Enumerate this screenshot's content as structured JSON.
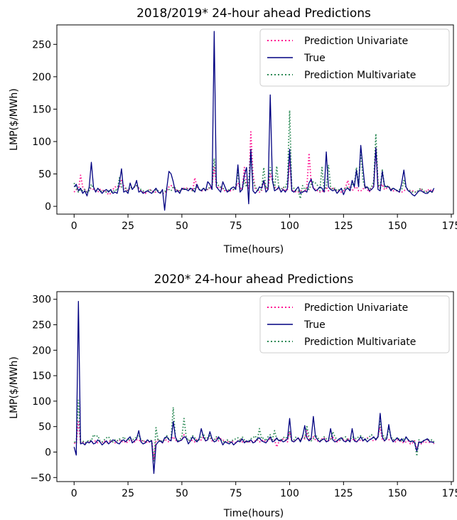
{
  "chart_data": [
    {
      "type": "line",
      "title": "2018/2019* 24-hour ahead Predictions",
      "xlabel": "Time(hours)",
      "ylabel": "LMP($/MWh)",
      "xlim": [
        -8,
        176
      ],
      "ylim": [
        -12,
        280
      ],
      "xticks": [
        0,
        25,
        50,
        75,
        100,
        125,
        150,
        175
      ],
      "yticks": [
        0,
        50,
        100,
        150,
        200,
        250
      ],
      "legend_position": "upper-right",
      "series": [
        {
          "name": "Prediction Univariate",
          "color": "#ff1493",
          "style": "dotted",
          "values": [
            22,
            26,
            24,
            48,
            30,
            25,
            22,
            26,
            28,
            26,
            24,
            22,
            26,
            25,
            24,
            22,
            18,
            20,
            26,
            30,
            30,
            28,
            40,
            32,
            26,
            24,
            28,
            30,
            30,
            32,
            28,
            24,
            22,
            20,
            22,
            26,
            24,
            22,
            22,
            24,
            22,
            20,
            20,
            24,
            30,
            32,
            30,
            26,
            24,
            24,
            26,
            28,
            28,
            28,
            26,
            24,
            44,
            30,
            26,
            24,
            24,
            26,
            26,
            28,
            32,
            60,
            32,
            28,
            30,
            26,
            24,
            24,
            24,
            24,
            26,
            30,
            36,
            28,
            26,
            60,
            32,
            28,
            115,
            50,
            28,
            24,
            22,
            24,
            40,
            26,
            28,
            50,
            40,
            30,
            28,
            26,
            24,
            30,
            24,
            26,
            70,
            24,
            24,
            22,
            22,
            24,
            24,
            22,
            30,
            82,
            36,
            28,
            26,
            24,
            22,
            24,
            22,
            30,
            24,
            28,
            28,
            26,
            24,
            24,
            22,
            24,
            30,
            40,
            26,
            24,
            28,
            30,
            24,
            24,
            26,
            32,
            26,
            22,
            30,
            32,
            90,
            32,
            28,
            34,
            26,
            28,
            30,
            26,
            24,
            24,
            24,
            22,
            22,
            24,
            26,
            26,
            24,
            24,
            22,
            22,
            24,
            28,
            22,
            22,
            26,
            24,
            26,
            22
          ]
        },
        {
          "name": "True",
          "color": "#000080",
          "style": "solid",
          "values": [
            30,
            34,
            24,
            28,
            20,
            24,
            16,
            30,
            68,
            30,
            22,
            28,
            24,
            20,
            24,
            26,
            22,
            26,
            20,
            22,
            20,
            36,
            58,
            22,
            24,
            20,
            36,
            26,
            30,
            40,
            22,
            24,
            20,
            22,
            24,
            22,
            20,
            24,
            28,
            22,
            20,
            26,
            -6,
            28,
            54,
            50,
            38,
            22,
            24,
            20,
            28,
            26,
            26,
            24,
            28,
            26,
            22,
            34,
            26,
            24,
            28,
            24,
            38,
            34,
            26,
            270,
            30,
            26,
            22,
            38,
            30,
            22,
            24,
            28,
            30,
            26,
            64,
            22,
            26,
            48,
            60,
            4,
            88,
            24,
            20,
            24,
            30,
            28,
            40,
            22,
            26,
            172,
            40,
            24,
            26,
            30,
            22,
            26,
            22,
            28,
            88,
            24,
            22,
            26,
            30,
            20,
            22,
            24,
            22,
            36,
            42,
            28,
            24,
            26,
            30,
            28,
            22,
            84,
            30,
            26,
            24,
            26,
            20,
            24,
            28,
            18,
            26,
            28,
            24,
            40,
            30,
            56,
            30,
            94,
            60,
            28,
            30,
            24,
            26,
            30,
            90,
            26,
            24,
            54,
            32,
            30,
            30,
            24,
            28,
            26,
            24,
            22,
            36,
            56,
            30,
            24,
            22,
            18,
            16,
            20,
            24,
            24,
            22,
            20,
            20,
            24,
            22,
            28
          ]
        },
        {
          "name": "Prediction Multivariate",
          "color": "#2e8b57",
          "style": "dotted",
          "values": [
            36,
            28,
            22,
            26,
            24,
            26,
            22,
            24,
            34,
            28,
            26,
            24,
            26,
            22,
            24,
            22,
            24,
            22,
            22,
            26,
            24,
            44,
            30,
            26,
            28,
            24,
            30,
            28,
            30,
            32,
            28,
            26,
            24,
            22,
            24,
            26,
            24,
            22,
            26,
            24,
            22,
            20,
            22,
            28,
            26,
            24,
            30,
            28,
            24,
            24,
            26,
            28,
            26,
            28,
            26,
            24,
            28,
            32,
            26,
            24,
            28,
            26,
            26,
            30,
            30,
            74,
            38,
            32,
            30,
            28,
            26,
            24,
            26,
            28,
            26,
            30,
            52,
            28,
            26,
            40,
            30,
            40,
            80,
            40,
            30,
            26,
            24,
            26,
            60,
            28,
            30,
            60,
            48,
            26,
            62,
            28,
            26,
            30,
            28,
            40,
            148,
            26,
            28,
            24,
            24,
            12,
            32,
            26,
            28,
            26,
            34,
            38,
            36,
            32,
            24,
            60,
            26,
            30,
            64,
            30,
            26,
            28,
            24,
            26,
            26,
            26,
            28,
            30,
            24,
            36,
            32,
            60,
            32,
            88,
            40,
            30,
            30,
            26,
            30,
            38,
            112,
            36,
            28,
            56,
            30,
            32,
            30,
            26,
            28,
            26,
            24,
            26,
            26,
            40,
            28,
            26,
            24,
            22,
            22,
            22,
            26,
            28,
            24,
            22,
            22,
            24,
            22,
            22
          ]
        }
      ]
    },
    {
      "type": "line",
      "title": "2020* 24-hour ahead Predictions",
      "xlabel": "Time(hours)",
      "ylabel": "LMP($/MWh)",
      "xlim": [
        -8,
        176
      ],
      "ylim": [
        -58,
        315
      ],
      "xticks": [
        0,
        25,
        50,
        75,
        100,
        125,
        150,
        175
      ],
      "yticks": [
        -50,
        0,
        50,
        100,
        150,
        200,
        250,
        300
      ],
      "legend_position": "upper-right",
      "series": [
        {
          "name": "Prediction Univariate",
          "color": "#ff1493",
          "style": "dotted",
          "values": [
            18,
            16,
            62,
            18,
            20,
            16,
            18,
            22,
            18,
            20,
            22,
            18,
            20,
            18,
            22,
            18,
            20,
            22,
            20,
            18,
            22,
            24,
            20,
            22,
            18,
            20,
            24,
            22,
            20,
            24,
            22,
            24,
            20,
            22,
            18,
            20,
            22,
            -14,
            22,
            24,
            22,
            18,
            26,
            22,
            20,
            24,
            30,
            24,
            20,
            22,
            24,
            34,
            26,
            22,
            24,
            22,
            20,
            26,
            22,
            24,
            30,
            22,
            26,
            28,
            22,
            24,
            28,
            22,
            26,
            24,
            20,
            22,
            18,
            22,
            20,
            18,
            22,
            24,
            20,
            20,
            22,
            18,
            22,
            20,
            22,
            24,
            20,
            22,
            24,
            20,
            22,
            26,
            22,
            24,
            10,
            20,
            22,
            26,
            24,
            20,
            40,
            22,
            20,
            24,
            28,
            22,
            30,
            26,
            42,
            24,
            26,
            30,
            24,
            22,
            20,
            26,
            28,
            22,
            22,
            26,
            30,
            24,
            20,
            22,
            28,
            24,
            22,
            26,
            22,
            24,
            26,
            20,
            22,
            24,
            22,
            24,
            28,
            26,
            24,
            22,
            24,
            30,
            50,
            24,
            22,
            26,
            24,
            28,
            22,
            20,
            24,
            22,
            20,
            18,
            20,
            22,
            16,
            18,
            22,
            4,
            20,
            16,
            20,
            18,
            24,
            18,
            20,
            16
          ]
        },
        {
          "name": "True",
          "color": "#000080",
          "style": "solid",
          "values": [
            10,
            -6,
            296,
            16,
            18,
            14,
            20,
            18,
            22,
            16,
            18,
            24,
            20,
            14,
            18,
            22,
            16,
            20,
            24,
            22,
            18,
            16,
            22,
            24,
            20,
            26,
            30,
            18,
            22,
            26,
            42,
            20,
            16,
            18,
            24,
            20,
            22,
            -42,
            14,
            20,
            22,
            18,
            28,
            30,
            24,
            22,
            60,
            30,
            20,
            22,
            24,
            30,
            28,
            16,
            22,
            30,
            24,
            20,
            26,
            46,
            30,
            22,
            24,
            40,
            26,
            20,
            22,
            30,
            24,
            14,
            20,
            18,
            16,
            20,
            14,
            18,
            22,
            20,
            26,
            18,
            22,
            20,
            24,
            18,
            20,
            26,
            28,
            22,
            20,
            18,
            24,
            30,
            20,
            22,
            28,
            22,
            24,
            20,
            22,
            26,
            66,
            22,
            20,
            24,
            28,
            20,
            30,
            52,
            28,
            22,
            26,
            70,
            30,
            24,
            20,
            24,
            26,
            20,
            22,
            46,
            24,
            20,
            22,
            26,
            28,
            22,
            20,
            24,
            20,
            46,
            22,
            20,
            24,
            30,
            22,
            26,
            20,
            24,
            26,
            30,
            24,
            30,
            76,
            30,
            22,
            26,
            54,
            28,
            20,
            24,
            28,
            22,
            26,
            20,
            30,
            24,
            20,
            22,
            18,
            2,
            20,
            18,
            22,
            24,
            26,
            20,
            20,
            18
          ]
        },
        {
          "name": "Prediction Multivariate",
          "color": "#2e8b57",
          "style": "dotted",
          "values": [
            20,
            18,
            102,
            20,
            22,
            18,
            20,
            24,
            22,
            34,
            30,
            32,
            22,
            20,
            24,
            28,
            30,
            22,
            20,
            24,
            22,
            26,
            22,
            30,
            24,
            22,
            28,
            24,
            26,
            30,
            34,
            24,
            22,
            20,
            22,
            24,
            22,
            -20,
            48,
            22,
            24,
            20,
            24,
            32,
            26,
            28,
            88,
            28,
            22,
            24,
            30,
            66,
            30,
            22,
            26,
            32,
            28,
            22,
            24,
            30,
            36,
            26,
            28,
            32,
            24,
            22,
            30,
            26,
            24,
            22,
            18,
            24,
            20,
            22,
            24,
            26,
            28,
            22,
            30,
            24,
            20,
            22,
            26,
            28,
            32,
            24,
            46,
            26,
            28,
            22,
            30,
            34,
            24,
            42,
            26,
            24,
            22,
            28,
            30,
            26,
            40,
            22,
            24,
            30,
            26,
            22,
            32,
            28,
            50,
            30,
            22,
            26,
            34,
            28,
            24,
            22,
            30,
            26,
            28,
            24,
            40,
            30,
            24,
            22,
            26,
            28,
            30,
            22,
            24,
            30,
            28,
            26,
            30,
            32,
            28,
            24,
            26,
            30,
            34,
            28,
            26,
            30,
            60,
            36,
            28,
            26,
            48,
            30,
            24,
            26,
            28,
            24,
            22,
            26,
            28,
            24,
            22,
            20,
            22,
            -8,
            24,
            20,
            22,
            24,
            26,
            22,
            24,
            20
          ]
        }
      ]
    }
  ]
}
